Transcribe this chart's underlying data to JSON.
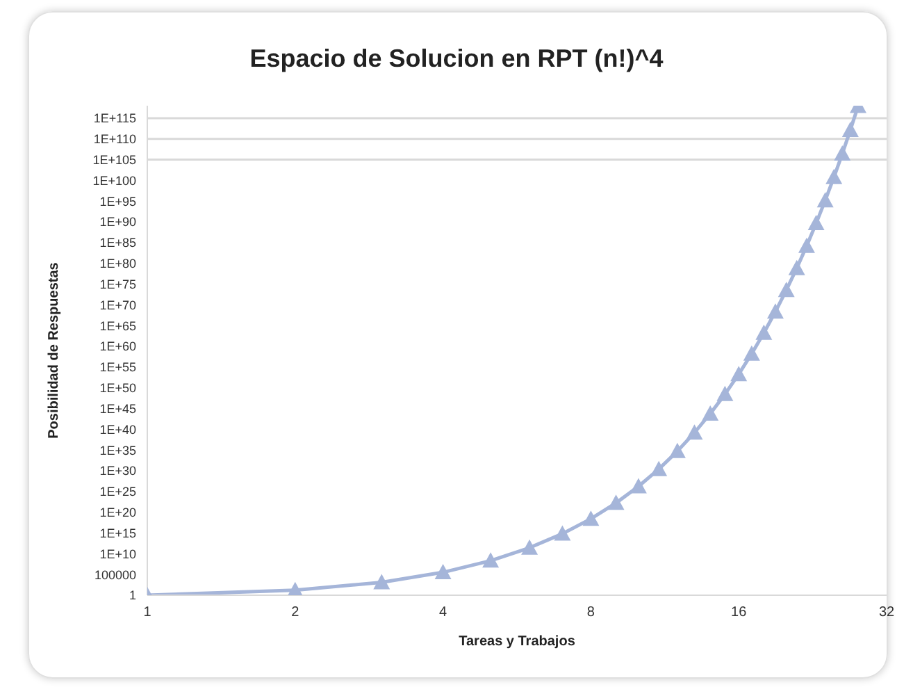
{
  "chart_data": {
    "type": "line",
    "title": "Espacio de Solucion en RPT (n!)^4",
    "xlabel": "Tareas y Trabajos",
    "ylabel": "Posibilidad de Respuestas",
    "x": [
      1,
      2,
      3,
      4,
      5,
      6,
      7,
      8,
      9,
      10,
      11,
      12,
      13,
      14,
      15,
      16,
      17,
      18,
      19,
      20,
      21,
      22,
      23,
      24,
      25,
      26,
      27,
      28
    ],
    "series": [
      {
        "color": "#a5b5d9",
        "values": [
          1,
          16,
          1296,
          331776,
          210000000.0,
          270000000000.0,
          650000000000000.0,
          2.6e+18,
          1.7e+22,
          1.7e+26,
          2.5e+30,
          5.3e+34,
          1.5e+39,
          5.8e+43,
          2.9e+48,
          1.9e+53,
          1.6e+58,
          1.7e+63,
          2.2e+68,
          3.5e+73,
          6.8e+78,
          1.6e+84,
          4.5e+89,
          1.5e+95,
          5.8e+100,
          2.6e+106,
          1.4e+112,
          8.6e+117
        ]
      }
    ],
    "log": "xy",
    "xlim": [
      1,
      32
    ],
    "xticks": [
      1,
      2,
      4,
      8,
      16,
      32
    ],
    "ylim": [
      1,
      1e+118
    ],
    "yticks": [
      1,
      100000,
      {
        "value": 10000000000.0,
        "label": "1E+10"
      },
      {
        "value": 1000000000000000.0,
        "label": "1E+15"
      },
      {
        "value": 1e+20,
        "label": "1E+20"
      },
      {
        "value": 1e+25,
        "label": "1E+25"
      },
      {
        "value": 1e+30,
        "label": "1E+30"
      },
      {
        "value": 1e+35,
        "label": "1E+35"
      },
      {
        "value": 1e+40,
        "label": "1E+40"
      },
      {
        "value": 1e+45,
        "label": "1E+45"
      },
      {
        "value": 1e+50,
        "label": "1E+50"
      },
      {
        "value": 1e+55,
        "label": "1E+55"
      },
      {
        "value": 1e+60,
        "label": "1E+60"
      },
      {
        "value": 1e+65,
        "label": "1E+65"
      },
      {
        "value": 1e+70,
        "label": "1E+70"
      },
      {
        "value": 1e+75,
        "label": "1E+75"
      },
      {
        "value": 1e+80,
        "label": "1E+80"
      },
      {
        "value": 1e+85,
        "label": "1E+85"
      },
      {
        "value": 1e+90,
        "label": "1E+90"
      },
      {
        "value": 1e+95,
        "label": "1E+95"
      },
      {
        "value": 1e+100,
        "label": "1E+100"
      },
      {
        "value": 1e+105,
        "label": "1E+105"
      },
      {
        "value": 1e+110,
        "label": "1E+110"
      },
      {
        "value": 1e+115,
        "label": "1E+115"
      }
    ],
    "ref_lines": [
      {
        "axis": "y",
        "value": 1e+105,
        "color": "#d9d9d9"
      },
      {
        "axis": "y",
        "value": 1e+110,
        "color": "#d9d9d9"
      },
      {
        "axis": "y",
        "value": 1e+115,
        "color": "#d9d9d9"
      }
    ],
    "marker": "triangle",
    "line_style": "solid",
    "legend": false,
    "grid": false
  }
}
